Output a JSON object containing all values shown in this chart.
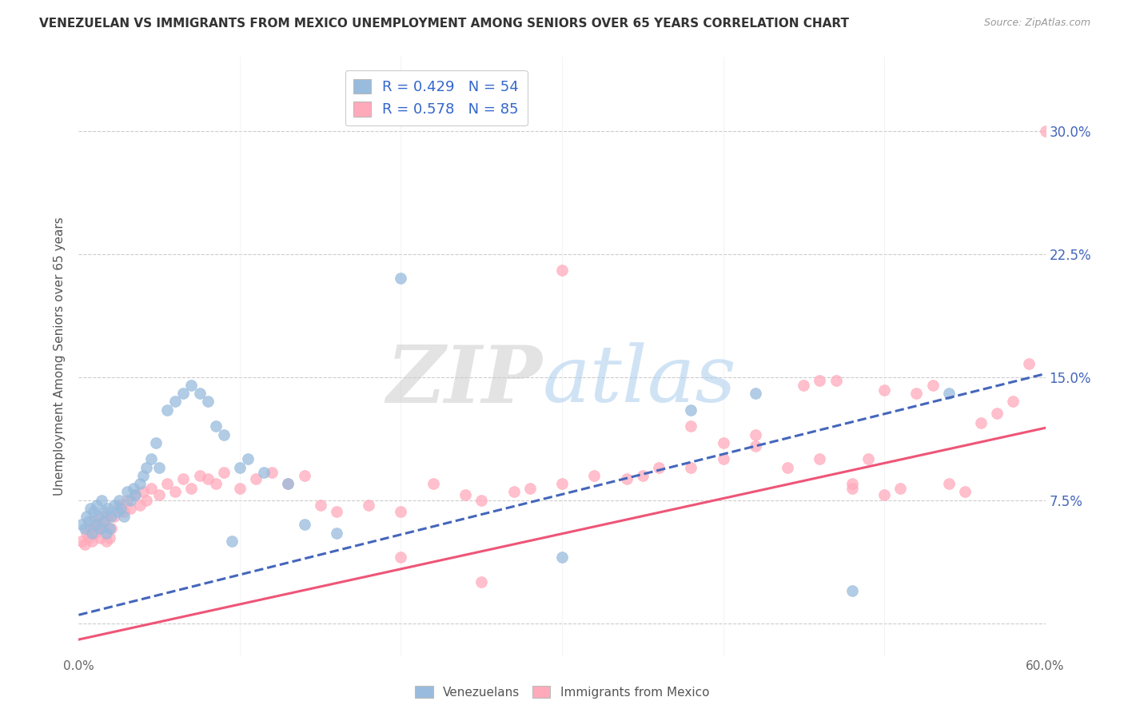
{
  "title": "VENEZUELAN VS IMMIGRANTS FROM MEXICO UNEMPLOYMENT AMONG SENIORS OVER 65 YEARS CORRELATION CHART",
  "source": "Source: ZipAtlas.com",
  "ylabel": "Unemployment Among Seniors over 65 years",
  "xlim": [
    0.0,
    0.6
  ],
  "ylim": [
    -0.02,
    0.345
  ],
  "ytick_vals": [
    0.0,
    0.075,
    0.15,
    0.225,
    0.3
  ],
  "yticklabels_right": [
    "",
    "7.5%",
    "15.0%",
    "22.5%",
    "30.0%"
  ],
  "xtick_vals": [
    0.0,
    0.1,
    0.2,
    0.3,
    0.4,
    0.5,
    0.6
  ],
  "xticklabels": [
    "0.0%",
    "",
    "",
    "",
    "",
    "",
    "60.0%"
  ],
  "legend_blue_r": "R = 0.429",
  "legend_blue_n": "N = 54",
  "legend_pink_r": "R = 0.578",
  "legend_pink_n": "N = 85",
  "legend_label1": "Venezuelans",
  "legend_label2": "Immigrants from Mexico",
  "blue_color": "#99BBDD",
  "pink_color": "#FFAABB",
  "blue_line_color": "#4466BB",
  "pink_line_color": "#EE5577",
  "blue_slope": 0.245,
  "blue_intercept": 0.005,
  "pink_slope": 0.215,
  "pink_intercept": -0.01,
  "venezuelan_x": [
    0.002,
    0.004,
    0.005,
    0.006,
    0.007,
    0.008,
    0.009,
    0.01,
    0.011,
    0.012,
    0.013,
    0.014,
    0.015,
    0.016,
    0.017,
    0.018,
    0.019,
    0.02,
    0.022,
    0.024,
    0.025,
    0.026,
    0.028,
    0.03,
    0.032,
    0.034,
    0.035,
    0.038,
    0.04,
    0.042,
    0.045,
    0.048,
    0.05,
    0.055,
    0.06,
    0.065,
    0.07,
    0.075,
    0.08,
    0.085,
    0.09,
    0.095,
    0.1,
    0.105,
    0.115,
    0.13,
    0.14,
    0.16,
    0.2,
    0.3,
    0.38,
    0.42,
    0.48,
    0.54
  ],
  "venezuelan_y": [
    0.06,
    0.058,
    0.065,
    0.062,
    0.07,
    0.055,
    0.068,
    0.06,
    0.072,
    0.065,
    0.058,
    0.075,
    0.062,
    0.068,
    0.055,
    0.07,
    0.058,
    0.065,
    0.072,
    0.068,
    0.075,
    0.07,
    0.065,
    0.08,
    0.075,
    0.082,
    0.078,
    0.085,
    0.09,
    0.095,
    0.1,
    0.11,
    0.095,
    0.13,
    0.135,
    0.14,
    0.145,
    0.14,
    0.135,
    0.12,
    0.115,
    0.05,
    0.095,
    0.1,
    0.092,
    0.085,
    0.06,
    0.055,
    0.21,
    0.04,
    0.13,
    0.14,
    0.02,
    0.14
  ],
  "mexico_x": [
    0.002,
    0.004,
    0.005,
    0.006,
    0.007,
    0.008,
    0.009,
    0.01,
    0.011,
    0.012,
    0.013,
    0.014,
    0.015,
    0.016,
    0.017,
    0.018,
    0.019,
    0.02,
    0.022,
    0.025,
    0.028,
    0.03,
    0.032,
    0.035,
    0.038,
    0.04,
    0.042,
    0.045,
    0.05,
    0.055,
    0.06,
    0.065,
    0.07,
    0.075,
    0.08,
    0.085,
    0.09,
    0.1,
    0.11,
    0.12,
    0.13,
    0.14,
    0.15,
    0.16,
    0.18,
    0.2,
    0.22,
    0.24,
    0.25,
    0.27,
    0.28,
    0.3,
    0.32,
    0.34,
    0.36,
    0.38,
    0.4,
    0.42,
    0.44,
    0.46,
    0.47,
    0.48,
    0.49,
    0.5,
    0.51,
    0.52,
    0.53,
    0.54,
    0.55,
    0.56,
    0.57,
    0.58,
    0.59,
    0.35,
    0.4,
    0.45,
    0.48,
    0.5,
    0.46,
    0.42,
    0.38,
    0.3,
    0.25,
    0.2,
    0.6
  ],
  "mexico_y": [
    0.05,
    0.048,
    0.055,
    0.052,
    0.058,
    0.05,
    0.062,
    0.055,
    0.06,
    0.058,
    0.052,
    0.065,
    0.058,
    0.062,
    0.05,
    0.065,
    0.052,
    0.058,
    0.065,
    0.072,
    0.068,
    0.075,
    0.07,
    0.078,
    0.072,
    0.08,
    0.075,
    0.082,
    0.078,
    0.085,
    0.08,
    0.088,
    0.082,
    0.09,
    0.088,
    0.085,
    0.092,
    0.082,
    0.088,
    0.092,
    0.085,
    0.09,
    0.072,
    0.068,
    0.072,
    0.068,
    0.085,
    0.078,
    0.075,
    0.08,
    0.082,
    0.085,
    0.09,
    0.088,
    0.095,
    0.095,
    0.1,
    0.108,
    0.095,
    0.1,
    0.148,
    0.082,
    0.1,
    0.078,
    0.082,
    0.14,
    0.145,
    0.085,
    0.08,
    0.122,
    0.128,
    0.135,
    0.158,
    0.09,
    0.11,
    0.145,
    0.085,
    0.142,
    0.148,
    0.115,
    0.12,
    0.215,
    0.025,
    0.04,
    0.3
  ]
}
